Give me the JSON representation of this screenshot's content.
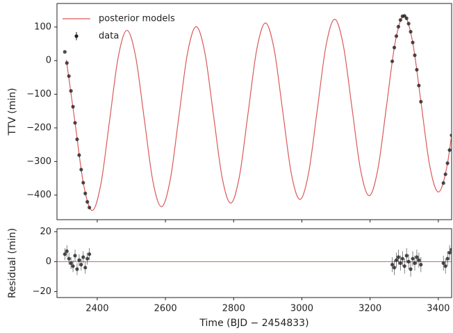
{
  "chart_data": [
    {
      "type": "scatter",
      "y_label": "TTV (min)",
      "xlim": [
        2282,
        3439
      ],
      "xticks": [
        2400,
        2600,
        2800,
        3000,
        3200,
        3400
      ],
      "ylim": [
        -473,
        170
      ],
      "yticks": [
        {
          "value": -400,
          "label": "−400"
        },
        {
          "value": -300,
          "label": "−300"
        },
        {
          "value": -200,
          "label": "−200"
        },
        {
          "value": -100,
          "label": "−100"
        },
        0,
        100
      ],
      "legend": "upper left",
      "series": [
        {
          "name": "posterior models",
          "color": "#d9595a",
          "style": "line",
          "x": [
            2309.4,
            2334.8,
            2360.1,
            2385.5,
            2410.9,
            2436.3,
            2461.6,
            2487,
            2512.4,
            2537.8,
            2563.1,
            2588.5,
            2613.9,
            2639.3,
            2664.6,
            2690,
            2715.4,
            2740.8,
            2766.1,
            2791.5,
            2816.9,
            2842.3,
            2867.6,
            2893,
            2918.4,
            2943.8,
            2969.1,
            2994.5,
            3019.9,
            3045.3,
            3070.6,
            3096,
            3121.4,
            3146.8,
            3172.1,
            3197.5,
            3222.9,
            3248.3,
            3273.6,
            3299,
            3324.4,
            3349.8,
            3375.1,
            3400.5,
            3425.9,
            3451.3
          ],
          "values": [
            2.4,
            -183.2,
            -368.9,
            -445.5,
            -366.1,
            -177.7,
            10.6,
            90,
            13.4,
            -172.3,
            -357.9,
            -434.5,
            -355.2,
            -166.8,
            21.6,
            101,
            24.3,
            -161.3,
            -346.9,
            -423.6,
            -344.2,
            -155.8,
            32.5,
            111.9,
            35.3,
            -150.3,
            -336,
            -412.6,
            -333.2,
            -144.9,
            43.5,
            122.9,
            46.3,
            -139.4,
            -325,
            -401.6,
            -322.3,
            -133.9,
            54.5,
            133.8,
            57.2,
            -128.4,
            -314,
            -390.7,
            -311.3,
            -122.9
          ]
        },
        {
          "name": "data",
          "color": "#222222",
          "style": "points",
          "x": [
            2305,
            2311,
            2317,
            2323,
            2329,
            2335,
            2341,
            2347,
            2353,
            2359,
            2365,
            2371,
            2377,
            3265,
            3271,
            3277,
            3283,
            3289,
            3295,
            3301,
            3307,
            3313,
            3319,
            3325,
            3331,
            3337,
            3343,
            3349,
            3415,
            3421,
            3427,
            3433,
            3439
          ],
          "values": [
            26,
            -7,
            -46,
            -90,
            -137,
            -185,
            -234,
            -281,
            -324,
            -363,
            -395,
            -420,
            -437,
            -2,
            39,
            73,
            101,
            121,
            132,
            133,
            126,
            110,
            86,
            54,
            16,
            -27,
            -74,
            -122,
            -364,
            -338,
            -305,
            -266,
            -222
          ]
        }
      ]
    },
    {
      "type": "scatter",
      "y_label": "Residual (min)",
      "x_label": "Time (BJD − 2454833)",
      "xlim": [
        2282,
        3439
      ],
      "xticks": [
        2400,
        2600,
        2800,
        3000,
        3200,
        3400
      ],
      "ylim": [
        -24,
        22
      ],
      "yticks": [
        {
          "value": -20,
          "label": "−20"
        },
        0,
        20
      ],
      "reference_line": 0,
      "reference_color": "#d9595a",
      "series": [
        {
          "color": "#222222",
          "style": "errorpoints",
          "x": [
            2305,
            2311,
            2317,
            2323,
            2329,
            2335,
            2341,
            2347,
            2353,
            2359,
            2365,
            2371,
            2377,
            3265,
            3271,
            3277,
            3283,
            3289,
            3295,
            3301,
            3307,
            3313,
            3319,
            3325,
            3331,
            3337,
            3343,
            3349,
            3415,
            3421,
            3427,
            3433,
            3439
          ],
          "values": [
            5,
            7,
            2,
            -1,
            -3,
            4,
            -5,
            1,
            -2,
            3,
            -4,
            2,
            5,
            -2,
            -4,
            1,
            3,
            -1,
            2,
            -3,
            4,
            0,
            -5,
            2,
            -1,
            3,
            1,
            -2,
            -1,
            -3,
            2,
            6,
            8
          ],
          "errors": [
            4,
            4,
            4,
            4,
            4,
            4,
            4,
            4,
            4,
            4,
            4,
            4,
            4,
            5,
            5,
            5,
            5,
            5,
            5,
            5,
            5,
            5,
            5,
            5,
            5,
            5,
            5,
            5,
            5,
            5,
            5,
            5,
            5
          ]
        }
      ]
    }
  ]
}
